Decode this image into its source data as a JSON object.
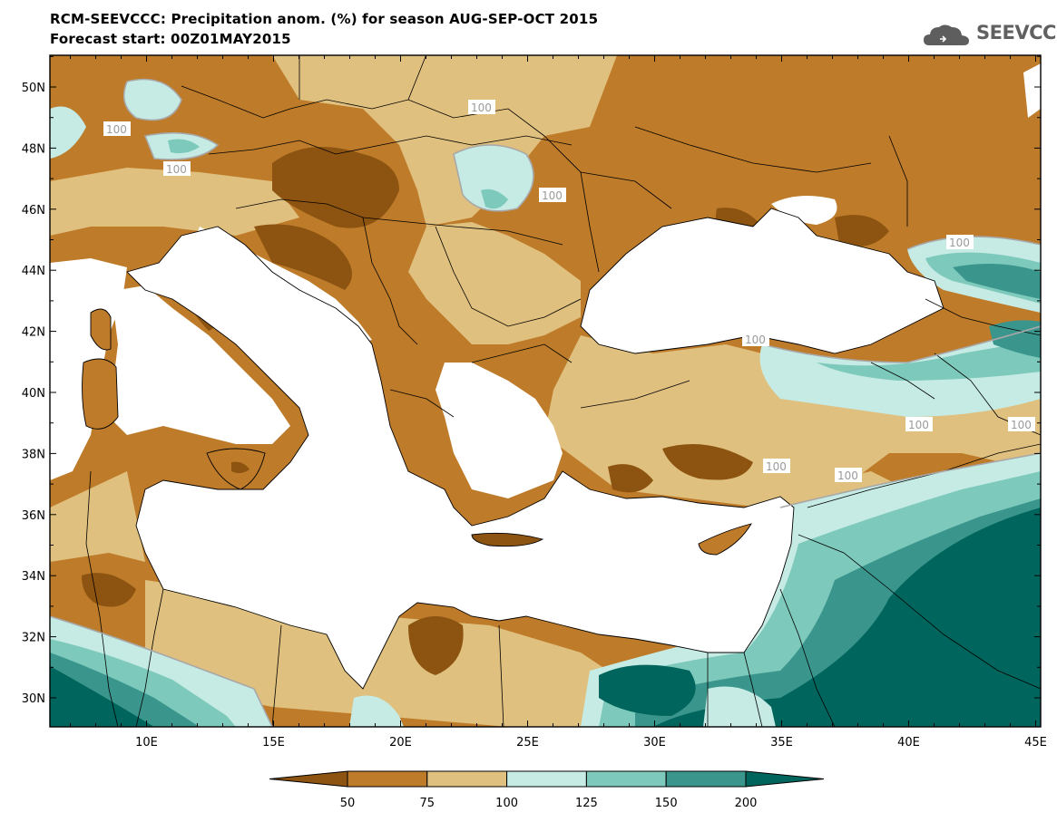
{
  "title": {
    "line1": "RCM-SEEVCCC: Precipitation anom. (%) for season AUG-SEP-OCT 2015",
    "line2": "Forecast start: 00Z01MAY2015"
  },
  "logo": {
    "text": "SEEVCCC",
    "icon": "cloud-icon"
  },
  "map_data": {
    "lon_ticks": [
      "10E",
      "15E",
      "20E",
      "25E",
      "30E",
      "35E",
      "40E",
      "45E"
    ],
    "lat_ticks": [
      "50N",
      "48N",
      "46N",
      "44N",
      "42N",
      "40N",
      "38N",
      "36N",
      "34N",
      "32N",
      "30N"
    ],
    "contour_label": "100",
    "colorbar": {
      "labels": [
        "50",
        "75",
        "100",
        "125",
        "150",
        "200"
      ],
      "colors": [
        "#8c5410",
        "#be7b2a",
        "#e0c07e",
        "#c5ebe4",
        "#7dc9bb",
        "#3a968d",
        "#00655c"
      ]
    },
    "palette": {
      "very_dry": "#8c5410",
      "dry": "#be7b2a",
      "slightly_dry": "#e0c07e",
      "slightly_wet": "#c5ebe4",
      "wet": "#7dc9bb",
      "very_wet": "#3a968d",
      "extreme_wet": "#00655c",
      "sea": "#ffffff",
      "contour": "#a8a8a8"
    }
  }
}
